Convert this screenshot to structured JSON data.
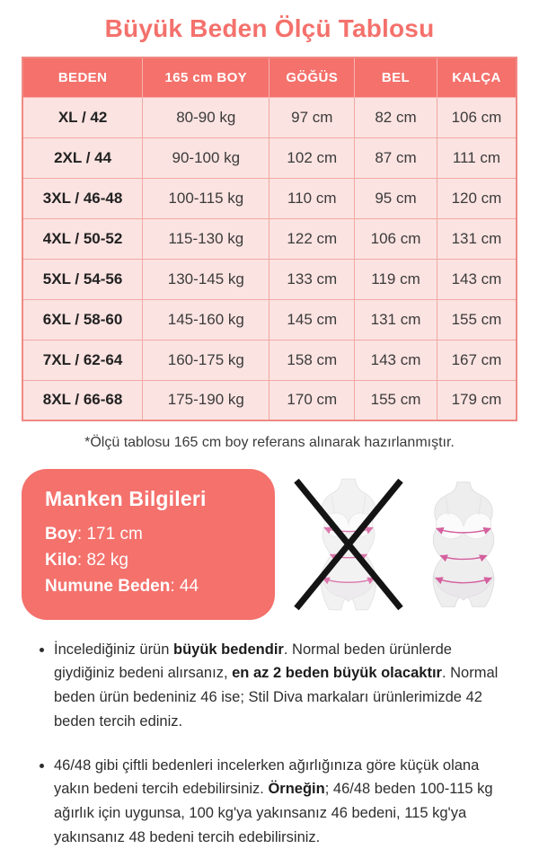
{
  "page": {
    "title": "Büyük Beden Ölçü Tablosu"
  },
  "table": {
    "headers": [
      "BEDEN",
      "165 cm BOY",
      "GÖĞÜS",
      "BEL",
      "KALÇA"
    ],
    "rows": [
      [
        "XL / 42",
        "80-90 kg",
        "97 cm",
        "82 cm",
        "106 cm"
      ],
      [
        "2XL / 44",
        "90-100 kg",
        "102 cm",
        "87 cm",
        "111 cm"
      ],
      [
        "3XL / 46-48",
        "100-115 kg",
        "110 cm",
        "95 cm",
        "120 cm"
      ],
      [
        "4XL / 50-52",
        "115-130 kg",
        "122 cm",
        "106 cm",
        "131 cm"
      ],
      [
        "5XL / 54-56",
        "130-145 kg",
        "133 cm",
        "119 cm",
        "143 cm"
      ],
      [
        "6XL / 58-60",
        "145-160 kg",
        "145 cm",
        "131 cm",
        "155 cm"
      ],
      [
        "7XL / 62-64",
        "160-175 kg",
        "158 cm",
        "143 cm",
        "167 cm"
      ],
      [
        "8XL / 66-68",
        "175-190 kg",
        "170 cm",
        "155 cm",
        "179 cm"
      ]
    ],
    "footnote": "*Ölçü tablosu 165 cm boy referans alınarak hazırlanmıştır."
  },
  "model_info": {
    "title": "Manken Bilgileri",
    "fields": [
      {
        "label": "Boy",
        "value": "171 cm"
      },
      {
        "label": "Kilo",
        "value": "82 kg"
      },
      {
        "label": "Numune Beden",
        "value": "44"
      }
    ]
  },
  "figures": {
    "wrong_figure": "normal-size-body-crossed-out",
    "correct_figure": "plus-size-body-with-measurement-lines"
  },
  "notes": [
    {
      "segments": [
        {
          "text": "İncelediğiniz ürün ",
          "bold": false
        },
        {
          "text": "büyük bedendir",
          "bold": true
        },
        {
          "text": ". Normal beden ürünlerde giydiğiniz bedeni alırsanız, ",
          "bold": false
        },
        {
          "text": "en az 2 beden büyük olacaktır",
          "bold": true
        },
        {
          "text": ". Normal beden ürün bedeniniz 46 ise; Stil Diva markaları ürünlerimizde 42 beden tercih ediniz.",
          "bold": false
        }
      ]
    },
    {
      "segments": [
        {
          "text": "46/48 gibi çiftli bedenleri incelerken ağırlığınıza göre küçük olana yakın bedeni tercih edebilirsiniz. ",
          "bold": false
        },
        {
          "text": "Örneğin",
          "bold": true
        },
        {
          "text": "; 46/48 beden 100-115 kg ağırlık için uygunsa, 100 kg'ya yakınsanız 46 bedeni, 115 kg'ya yakınsanız 48 bedeni tercih edebilirsiniz.",
          "bold": false
        }
      ]
    }
  ],
  "colors": {
    "coral": "#f4716c",
    "cell_bg": "#fbe3e1",
    "cell_border": "#f0a9a4",
    "outer_border": "#ef8a84",
    "text_dark": "#3b3b3b",
    "measure_line": "#d4609e"
  }
}
